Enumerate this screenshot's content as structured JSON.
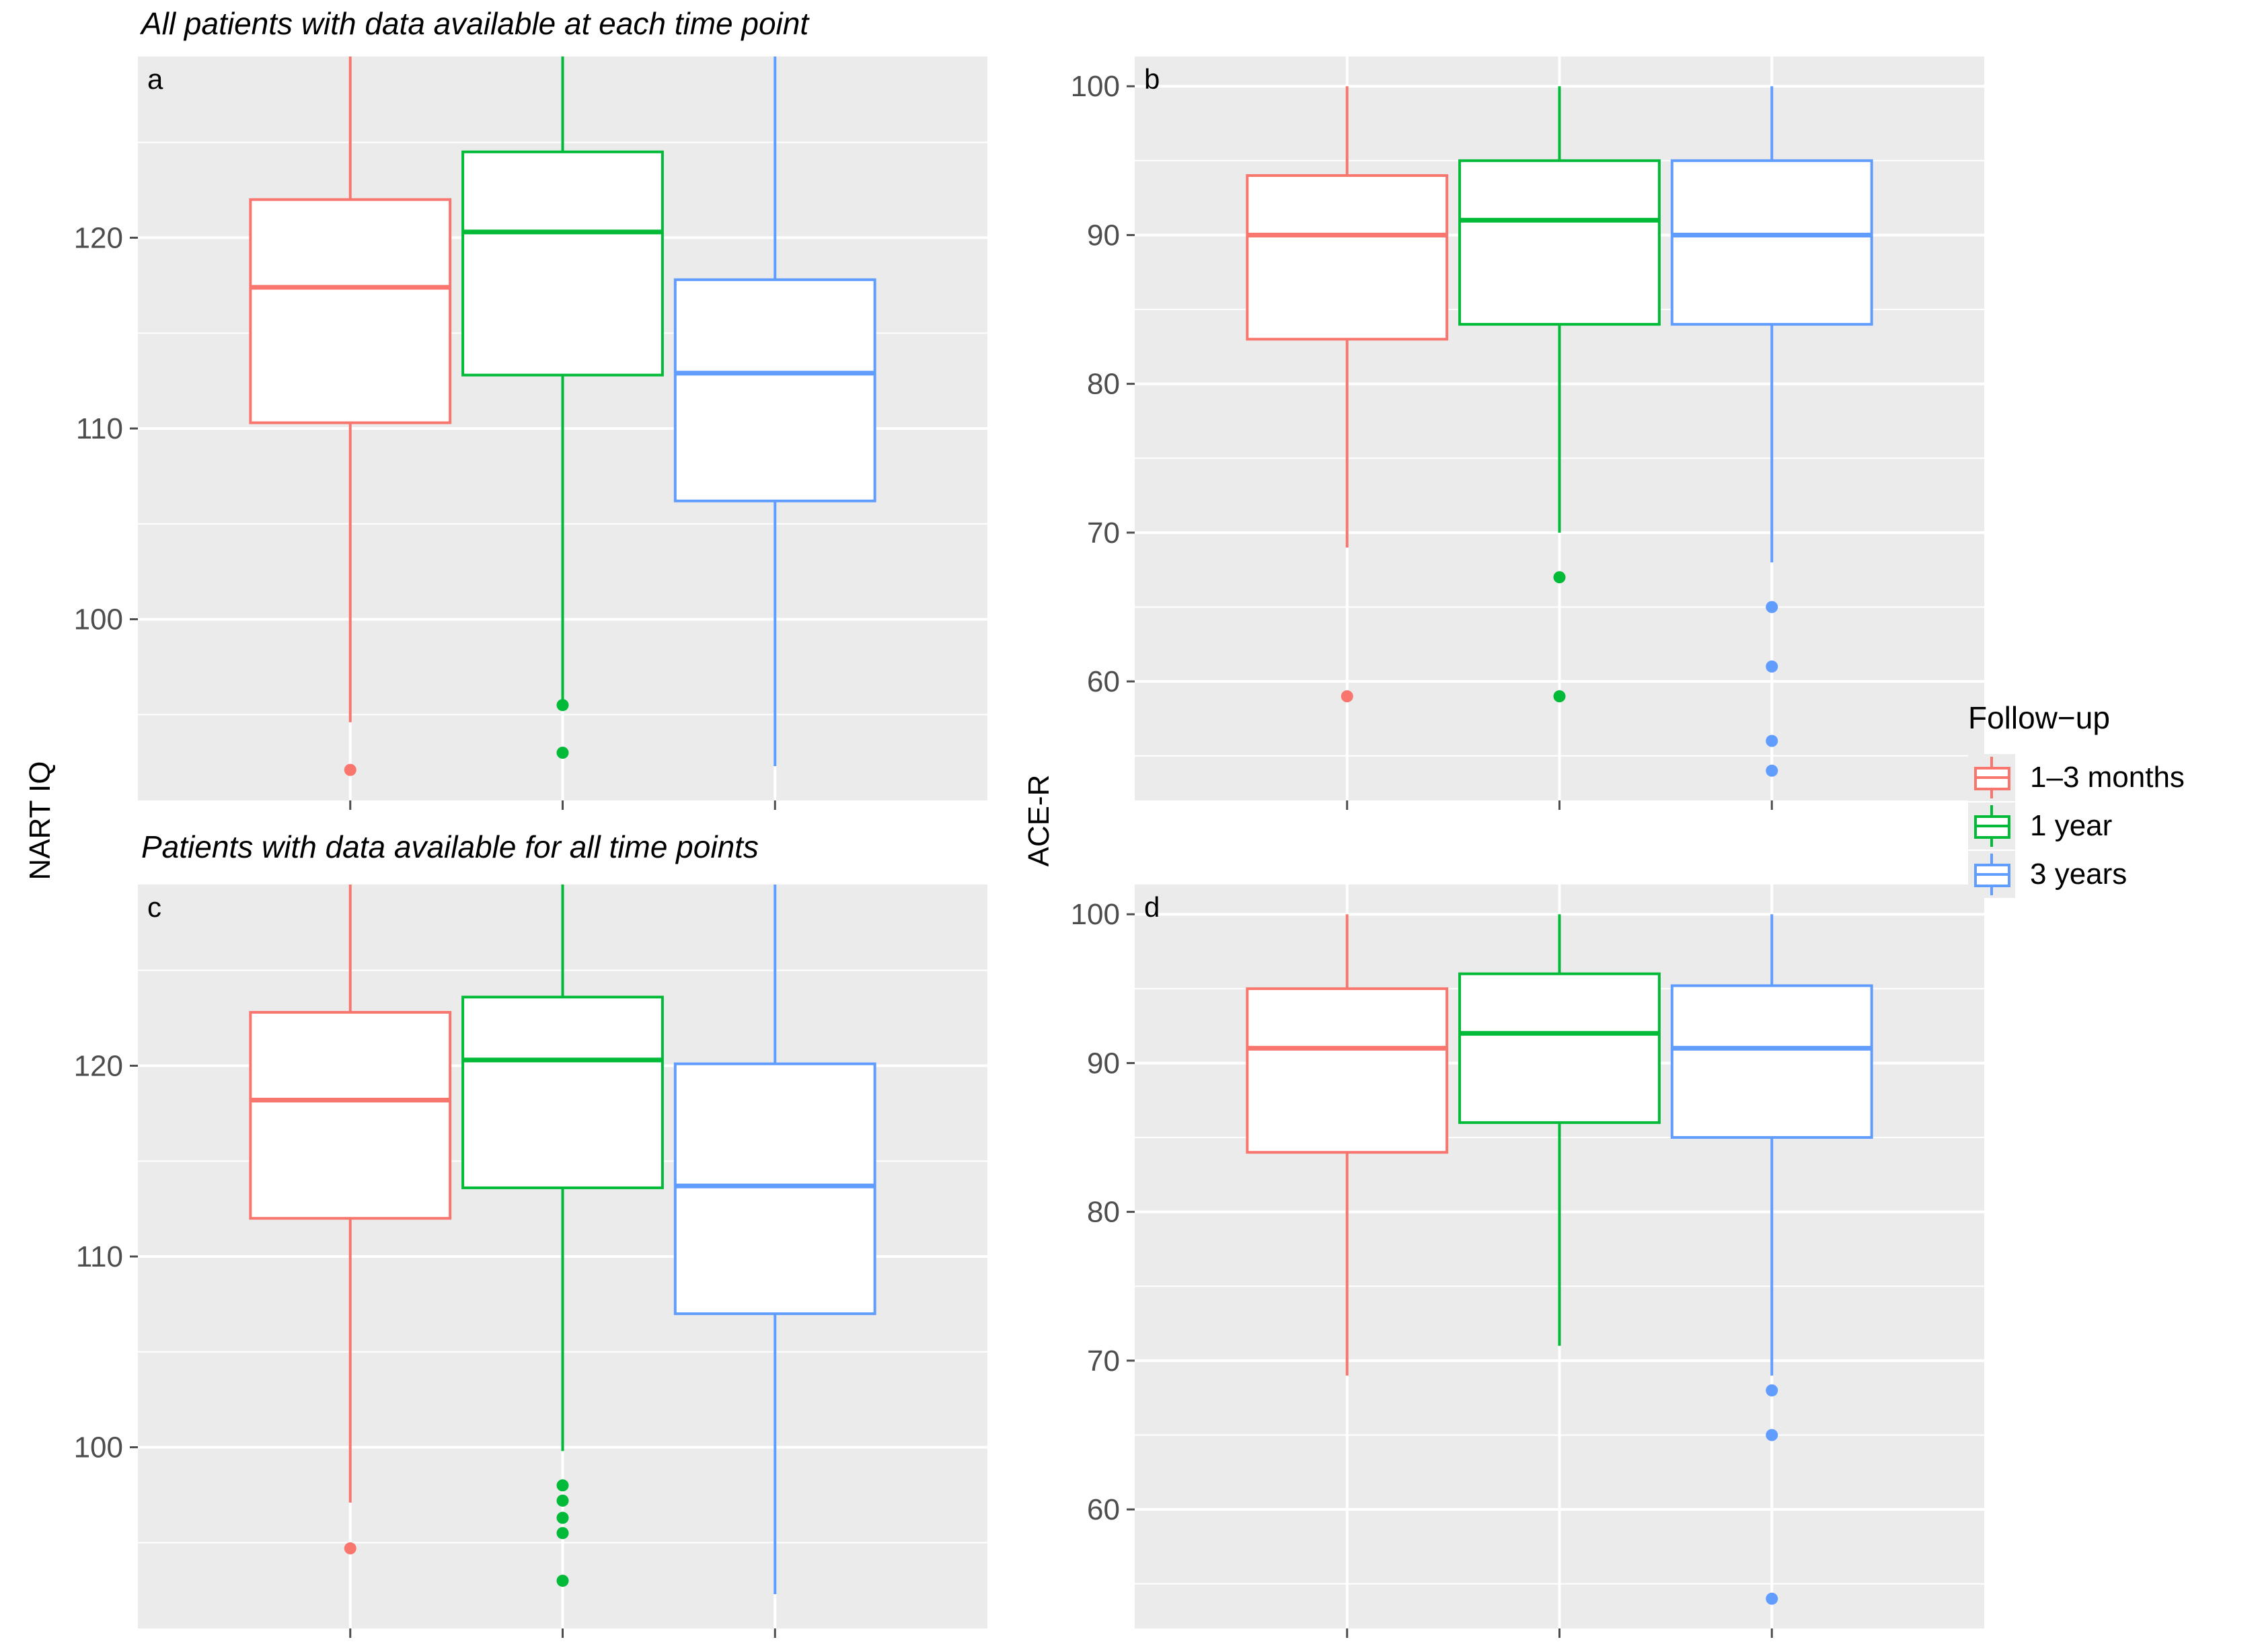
{
  "labels": {
    "subtitle_top": "All patients with data available at each time point",
    "subtitle_bottom": "Patients with data available for all time points",
    "ylabel_left": "NART IQ",
    "ylabel_right": "ACE-R"
  },
  "legend": {
    "title": "Follow−up",
    "items": [
      {
        "label": "1–3 months",
        "color": "#F8766D"
      },
      {
        "label": "1 year",
        "color": "#00BA38"
      },
      {
        "label": "3 years",
        "color": "#619CFF"
      }
    ]
  },
  "chart_data": [
    {
      "type": "box",
      "panel_label": "a",
      "ylim": [
        90.5,
        129.5
      ],
      "yticks": [
        100,
        110,
        120
      ],
      "yticklabels": [
        "100",
        "110",
        "120"
      ],
      "categories": [
        "1–3 months",
        "1 year",
        "3 years"
      ],
      "boxes": [
        {
          "name": "1–3 months",
          "color": "#F8766D",
          "lower_whisker": 94.6,
          "q1": 110.3,
          "median": 117.4,
          "q3": 122.0,
          "upper_whisker": 129.5,
          "outliers": [
            92.1
          ]
        },
        {
          "name": "1 year",
          "color": "#00BA38",
          "lower_whisker": 95.8,
          "q1": 112.8,
          "median": 120.3,
          "q3": 124.5,
          "upper_whisker": 129.5,
          "outliers": [
            95.5,
            93.0
          ]
        },
        {
          "name": "3 years",
          "color": "#619CFF",
          "lower_whisker": 92.3,
          "q1": 106.2,
          "median": 112.9,
          "q3": 117.8,
          "upper_whisker": 129.5,
          "outliers": []
        }
      ]
    },
    {
      "type": "box",
      "panel_label": "b",
      "ylim": [
        52,
        102
      ],
      "yticks": [
        60,
        70,
        80,
        90,
        100
      ],
      "yticklabels": [
        "60",
        "70",
        "80",
        "90",
        "100"
      ],
      "categories": [
        "1–3 months",
        "1 year",
        "3 years"
      ],
      "boxes": [
        {
          "name": "1–3 months",
          "color": "#F8766D",
          "lower_whisker": 69,
          "q1": 83,
          "median": 90,
          "q3": 94,
          "upper_whisker": 100,
          "outliers": [
            59
          ]
        },
        {
          "name": "1 year",
          "color": "#00BA38",
          "lower_whisker": 70,
          "q1": 84,
          "median": 91,
          "q3": 95,
          "upper_whisker": 100,
          "outliers": [
            67,
            59
          ]
        },
        {
          "name": "3 years",
          "color": "#619CFF",
          "lower_whisker": 68,
          "q1": 84,
          "median": 90,
          "q3": 95,
          "upper_whisker": 100,
          "outliers": [
            65,
            61,
            56,
            54
          ]
        }
      ]
    },
    {
      "type": "box",
      "panel_label": "c",
      "ylim": [
        90.5,
        129.5
      ],
      "yticks": [
        100,
        110,
        120
      ],
      "yticklabels": [
        "100",
        "110",
        "120"
      ],
      "categories": [
        "1–3 months",
        "1 year",
        "3 years"
      ],
      "boxes": [
        {
          "name": "1–3 months",
          "color": "#F8766D",
          "lower_whisker": 97.1,
          "q1": 112.0,
          "median": 118.2,
          "q3": 122.8,
          "upper_whisker": 129.5,
          "outliers": [
            94.7
          ]
        },
        {
          "name": "1 year",
          "color": "#00BA38",
          "lower_whisker": 99.8,
          "q1": 113.6,
          "median": 120.3,
          "q3": 123.6,
          "upper_whisker": 129.5,
          "outliers": [
            98.0,
            97.2,
            96.3,
            95.5,
            93.0
          ]
        },
        {
          "name": "3 years",
          "color": "#619CFF",
          "lower_whisker": 92.3,
          "q1": 107.0,
          "median": 113.7,
          "q3": 120.1,
          "upper_whisker": 129.5,
          "outliers": []
        }
      ]
    },
    {
      "type": "box",
      "panel_label": "d",
      "ylim": [
        52,
        102
      ],
      "yticks": [
        60,
        70,
        80,
        90,
        100
      ],
      "yticklabels": [
        "60",
        "70",
        "80",
        "90",
        "100"
      ],
      "categories": [
        "1–3 months",
        "1 year",
        "3 years"
      ],
      "boxes": [
        {
          "name": "1–3 months",
          "color": "#F8766D",
          "lower_whisker": 69,
          "q1": 84,
          "median": 91,
          "q3": 95,
          "upper_whisker": 100,
          "outliers": []
        },
        {
          "name": "1 year",
          "color": "#00BA38",
          "lower_whisker": 71,
          "q1": 86,
          "median": 92,
          "q3": 96,
          "upper_whisker": 100,
          "outliers": []
        },
        {
          "name": "3 years",
          "color": "#619CFF",
          "lower_whisker": 69,
          "q1": 85,
          "median": 91,
          "q3": 95.2,
          "upper_whisker": 100,
          "outliers": [
            68,
            65,
            54
          ]
        }
      ]
    }
  ]
}
